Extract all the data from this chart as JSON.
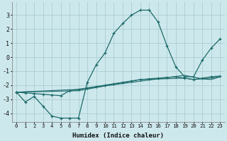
{
  "xlabel": "Humidex (Indice chaleur)",
  "bg_color": "#cde8ec",
  "grid_color": "#aacdd4",
  "line_color": "#1e6b6b",
  "xlim": [
    -0.5,
    23.5
  ],
  "ylim": [
    -4.6,
    3.9
  ],
  "xticks": [
    0,
    1,
    2,
    3,
    4,
    5,
    6,
    7,
    8,
    9,
    10,
    11,
    12,
    13,
    14,
    15,
    16,
    17,
    18,
    19,
    20,
    21,
    22,
    23
  ],
  "yticks": [
    -4,
    -3,
    -2,
    -1,
    0,
    1,
    2,
    3
  ],
  "series1_x": [
    0,
    1,
    2,
    3,
    4,
    5,
    6,
    7,
    8,
    9,
    10,
    11,
    12,
    13,
    14,
    15,
    16,
    17,
    18,
    19,
    20,
    21,
    22,
    23
  ],
  "series1_y": [
    -2.5,
    -3.2,
    -2.8,
    -3.5,
    -4.2,
    -4.35,
    -4.35,
    -4.35,
    -1.8,
    -0.55,
    0.3,
    1.7,
    2.4,
    3.0,
    3.35,
    3.35,
    2.5,
    0.8,
    -0.7,
    -1.4,
    -1.4,
    -0.2,
    0.65,
    1.3
  ],
  "series2_x": [
    0,
    1,
    2,
    3,
    4,
    5,
    6,
    7,
    8,
    9,
    10,
    11,
    12,
    13,
    14,
    15,
    16,
    17,
    18,
    19,
    20,
    21,
    22,
    23
  ],
  "series2_y": [
    -2.5,
    -2.55,
    -2.6,
    -2.65,
    -2.7,
    -2.75,
    -2.4,
    -2.3,
    -2.2,
    -2.1,
    -2.0,
    -1.9,
    -1.8,
    -1.7,
    -1.6,
    -1.55,
    -1.5,
    -1.45,
    -1.4,
    -1.5,
    -1.6,
    -1.5,
    -1.4,
    -1.35
  ],
  "series3_x": [
    0,
    7,
    14,
    19,
    20,
    21,
    22,
    23
  ],
  "series3_y": [
    -2.5,
    -2.4,
    -1.6,
    -1.5,
    -1.6,
    -1.55,
    -1.5,
    -1.4
  ],
  "series4_x": [
    0,
    7,
    19,
    21,
    22,
    23
  ],
  "series4_y": [
    -2.5,
    -2.3,
    -1.3,
    -1.55,
    -1.6,
    -1.4
  ]
}
